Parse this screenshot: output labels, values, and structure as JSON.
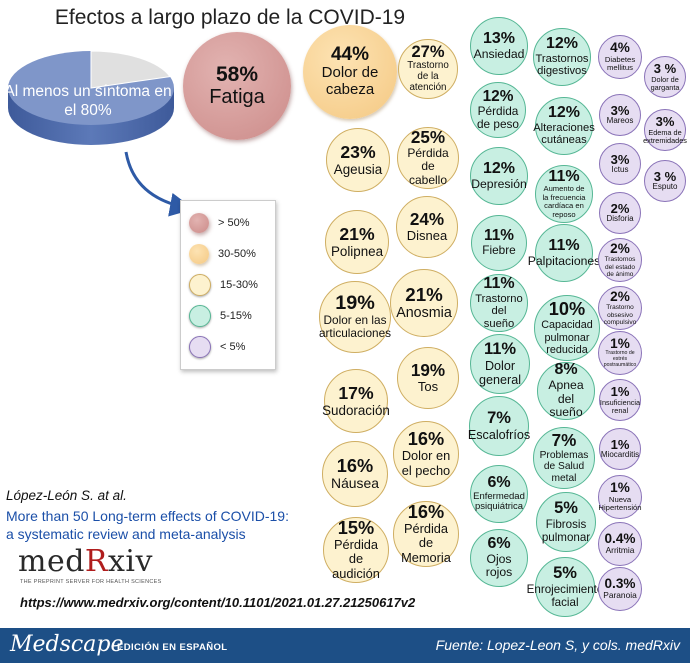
{
  "title": "Efectos a largo plazo de la COVID-19",
  "summary": {
    "label": "Al menos un síntoma en el 80%",
    "value_percent": 80
  },
  "legend": [
    {
      "label": "> 50%",
      "category": "red"
    },
    {
      "label": "30-50%",
      "category": "orange"
    },
    {
      "label": "15-30%",
      "category": "yellow"
    },
    {
      "label": "5-15%",
      "category": "green"
    },
    {
      "label": "< 5%",
      "category": "purple"
    }
  ],
  "effects": [
    {
      "pct": "58%",
      "label": "Fatiga",
      "category": "red"
    },
    {
      "pct": "44%",
      "label": "Dolor de cabeza",
      "category": "orange"
    },
    {
      "pct": "27%",
      "label": "Trastorno de la atención",
      "category": "yellow"
    },
    {
      "pct": "25%",
      "label": "Pérdida de cabello",
      "category": "yellow"
    },
    {
      "pct": "23%",
      "label": "Ageusia",
      "category": "yellow"
    },
    {
      "pct": "24%",
      "label": "Disnea",
      "category": "yellow"
    },
    {
      "pct": "21%",
      "label": "Polipnea",
      "category": "yellow"
    },
    {
      "pct": "21%",
      "label": "Anosmia",
      "category": "yellow"
    },
    {
      "pct": "19%",
      "label": "Dolor en las articulaciones",
      "category": "yellow"
    },
    {
      "pct": "19%",
      "label": "Tos",
      "category": "yellow"
    },
    {
      "pct": "17%",
      "label": "Sudoración",
      "category": "yellow"
    },
    {
      "pct": "16%",
      "label": "Dolor en el pecho",
      "category": "yellow"
    },
    {
      "pct": "16%",
      "label": "Náusea",
      "category": "yellow"
    },
    {
      "pct": "16%",
      "label": "Pérdida de Memoria",
      "category": "yellow"
    },
    {
      "pct": "15%",
      "label": "Pérdida de audición",
      "category": "yellow"
    },
    {
      "pct": "13%",
      "label": "Ansiedad",
      "category": "green"
    },
    {
      "pct": "12%",
      "label": "Trastornos digestivos",
      "category": "green"
    },
    {
      "pct": "12%",
      "label": "Pérdida de peso",
      "category": "green"
    },
    {
      "pct": "12%",
      "label": "Alteraciones cutáneas",
      "category": "green"
    },
    {
      "pct": "12%",
      "label": "Depresión",
      "category": "green"
    },
    {
      "pct": "11%",
      "label": "Aumento de la frecuencia cardíaca en reposo",
      "category": "green"
    },
    {
      "pct": "11%",
      "label": "Fiebre",
      "category": "green"
    },
    {
      "pct": "11%",
      "label": "Palpitaciones",
      "category": "green"
    },
    {
      "pct": "11%",
      "label": "Trastorno del sueño",
      "category": "green"
    },
    {
      "pct": "10%",
      "label": "Capacidad pulmonar reducida",
      "category": "green"
    },
    {
      "pct": "11%",
      "label": "Dolor general",
      "category": "green"
    },
    {
      "pct": "8%",
      "label": "Apnea del sueño",
      "category": "green"
    },
    {
      "pct": "7%",
      "label": "Escalofríos",
      "category": "green"
    },
    {
      "pct": "7%",
      "label": "Problemas de Salud metal",
      "category": "green"
    },
    {
      "pct": "6%",
      "label": "Enfermedad psiquiátrica",
      "category": "green"
    },
    {
      "pct": "5%",
      "label": "Fibrosis pulmonar",
      "category": "green"
    },
    {
      "pct": "6%",
      "label": "Ojos rojos",
      "category": "green"
    },
    {
      "pct": "5%",
      "label": "Enrojecimiento facial",
      "category": "green"
    },
    {
      "pct": "4%",
      "label": "Diabetes mellitus",
      "category": "purple"
    },
    {
      "pct": "3 %",
      "label": "Dolor de garganta",
      "category": "purple"
    },
    {
      "pct": "3%",
      "label": "Mareos",
      "category": "purple"
    },
    {
      "pct": "3%",
      "label": "Edema de extremidades",
      "category": "purple"
    },
    {
      "pct": "3%",
      "label": "Ictus",
      "category": "purple"
    },
    {
      "pct": "3 %",
      "label": "Esputo",
      "category": "purple"
    },
    {
      "pct": "2%",
      "label": "Disforia",
      "category": "purple"
    },
    {
      "pct": "2%",
      "label": "Trastornos del estado de ánimo",
      "category": "purple"
    },
    {
      "pct": "2%",
      "label": "Trastorno obsesivo compulsivo",
      "category": "purple"
    },
    {
      "pct": "1%",
      "label": "Trastorno de estrés postraumático",
      "category": "purple"
    },
    {
      "pct": "1%",
      "label": "Insuficiencia renal",
      "category": "purple"
    },
    {
      "pct": "1%",
      "label": "Miocarditis",
      "category": "purple"
    },
    {
      "pct": "1%",
      "label": "Nueva Hipertensión",
      "category": "purple"
    },
    {
      "pct": "0.4%",
      "label": "Arritmia",
      "category": "purple"
    },
    {
      "pct": "0.3%",
      "label": "Paranoia",
      "category": "purple"
    }
  ],
  "citation": {
    "author": "López-León S. at al.",
    "title": "More than 50 Long-term effects of COVID-19: a systematic review and meta-analysis",
    "logo_text": "medRxiv",
    "logo_tagline": "THE PREPRINT SERVER FOR HEALTH SCIENCES",
    "url": "https://www.medrxiv.org/content/10.1101/2021.01.27.21250617v2"
  },
  "footer": {
    "brand": "Medscape",
    "edition": "EDICIÓN EN ESPAÑOL",
    "source": "Fuente: Lopez-Leon S, y cols. medRxiv"
  },
  "colors": {
    "red": "#cc8b89",
    "orange": "#f4c882",
    "yellow": "#fdf2cf",
    "green": "#c8efe2",
    "purple": "#e6ddf2",
    "pie_main": "#7f96c9",
    "pie_rest": "#e0e0e0",
    "footer": "#1d4f86",
    "citation_title": "#1b4fa8"
  }
}
